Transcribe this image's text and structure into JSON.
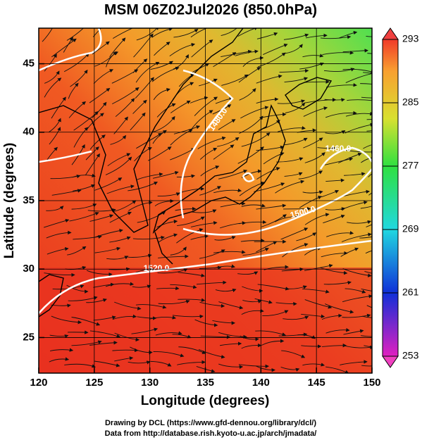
{
  "title": "MSM 06Z02Jul2026 (850.0hPa)",
  "map": {
    "x_label": "Longitude (degrees)",
    "y_label": "Latitude  (degrees)",
    "xlim": [
      120,
      150
    ],
    "ylim": [
      22.4,
      47.6
    ],
    "xticks": [
      120,
      125,
      130,
      135,
      140,
      145,
      150
    ],
    "yticks": [
      25,
      30,
      35,
      40,
      45
    ],
    "contour_labels": [
      "1520.0",
      "1500.0",
      "1480.0",
      "1460.0"
    ]
  },
  "colorbar": {
    "lim": [
      253,
      293
    ],
    "ticks": [
      253,
      261,
      269,
      277,
      285,
      293
    ]
  },
  "footer": [
    "Drawing by DCL (https://www.gfd-dennou.org/library/dcl/)",
    "Data from http://database.rish.kyoto-u.ac.jp/arch/jmadata/"
  ]
}
